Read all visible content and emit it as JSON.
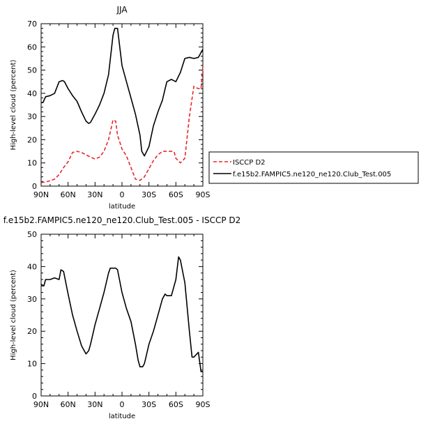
{
  "chart_data": [
    {
      "type": "line",
      "title": "JJA",
      "xlabel": "latitude",
      "ylabel": "High-level cloud (percent)",
      "xlim": [
        90,
        -90
      ],
      "ylim": [
        0,
        70
      ],
      "x_ticks": [
        90,
        60,
        30,
        0,
        -30,
        -60,
        -90
      ],
      "x_tick_labels": [
        "90N",
        "60N",
        "30N",
        "0",
        "30S",
        "60S",
        "90S"
      ],
      "y_ticks": [
        0,
        10,
        20,
        30,
        40,
        50,
        60,
        70
      ],
      "y_tick_labels": [
        "0",
        "10",
        "20",
        "30",
        "40",
        "50",
        "60",
        "70"
      ],
      "legend_position": "right",
      "series": [
        {
          "name": "ISCCP D2",
          "color": "#e8262a",
          "dash": "dashed",
          "x": [
            90,
            85,
            80,
            75,
            70,
            65,
            60,
            55,
            50,
            45,
            40,
            35,
            30,
            25,
            20,
            15,
            10,
            7,
            5,
            0,
            -5,
            -10,
            -15,
            -20,
            -25,
            -30,
            -35,
            -40,
            -45,
            -50,
            -55,
            -58,
            -60,
            -65,
            -70,
            -75,
            -80,
            -85,
            -88,
            -90
          ],
          "y": [
            1.5,
            1.8,
            2.3,
            3.0,
            5.0,
            8.0,
            10.5,
            14.5,
            15,
            14.5,
            13.5,
            12.5,
            11.7,
            12.5,
            15,
            20,
            28.5,
            28,
            22,
            16,
            13,
            8,
            3,
            2.5,
            4,
            7.5,
            11,
            13.5,
            15,
            15,
            15,
            14.8,
            12,
            10,
            12,
            30,
            43,
            42,
            42,
            52
          ]
        },
        {
          "name": "f.e15b2.FAMPIC5.ne120_ne120.Club_Test.005",
          "color": "#000000",
          "dash": "solid",
          "x": [
            90,
            88,
            85,
            80,
            75,
            70,
            66,
            64,
            60,
            55,
            50,
            45,
            40,
            37,
            35,
            30,
            25,
            20,
            15,
            12,
            10,
            8,
            5,
            0,
            -5,
            -10,
            -15,
            -20,
            -22,
            -25,
            -30,
            -35,
            -40,
            -45,
            -48,
            -50,
            -55,
            -60,
            -65,
            -70,
            -75,
            -80,
            -85,
            -90
          ],
          "y": [
            36,
            36,
            38.5,
            39,
            40,
            45,
            45.5,
            45,
            42,
            39,
            36.5,
            32,
            28,
            27,
            27.5,
            31,
            35,
            40,
            48,
            58,
            65,
            68,
            68,
            52,
            45,
            38,
            31,
            22,
            15,
            13,
            17,
            26,
            32,
            37,
            42,
            45,
            46,
            45,
            49,
            55,
            55.5,
            55,
            55.5,
            59
          ]
        }
      ]
    },
    {
      "type": "line",
      "title": "f.e15b2.FAMPIC5.ne120_ne120.Club_Test.005 - ISCCP D2",
      "xlabel": "latitude",
      "ylabel": "High-level cloud (percent)",
      "xlim": [
        90,
        -90
      ],
      "ylim": [
        0,
        50
      ],
      "x_ticks": [
        90,
        60,
        30,
        0,
        -30,
        -60,
        -90
      ],
      "x_tick_labels": [
        "90N",
        "60N",
        "30N",
        "0",
        "30S",
        "60S",
        "90S"
      ],
      "y_ticks": [
        0,
        10,
        20,
        30,
        40,
        50
      ],
      "y_tick_labels": [
        "0",
        "10",
        "20",
        "30",
        "40",
        "50"
      ],
      "series": [
        {
          "color": "#000000",
          "dash": "solid",
          "x": [
            90,
            87,
            85,
            80,
            75,
            70,
            68,
            65,
            60,
            55,
            50,
            45,
            40,
            37,
            35,
            30,
            25,
            20,
            15,
            13,
            10,
            7,
            5,
            0,
            -5,
            -10,
            -15,
            -18,
            -20,
            -23,
            -25,
            -30,
            -35,
            -40,
            -45,
            -48,
            -50,
            -55,
            -60,
            -63,
            -65,
            -70,
            -75,
            -78,
            -80,
            -85,
            -88,
            -90
          ],
          "y": [
            34.5,
            34,
            36,
            36,
            36.5,
            36,
            39,
            38.5,
            31.5,
            25,
            20,
            15.5,
            13,
            14,
            16,
            22,
            27,
            32,
            38,
            39.5,
            39.5,
            39.5,
            39,
            32,
            27,
            23,
            16,
            11,
            9,
            9,
            10,
            16,
            20,
            25,
            30,
            31.5,
            31,
            31,
            36,
            43,
            42,
            35,
            20,
            12,
            12,
            13.5,
            7.5,
            7.5
          ]
        }
      ]
    }
  ]
}
